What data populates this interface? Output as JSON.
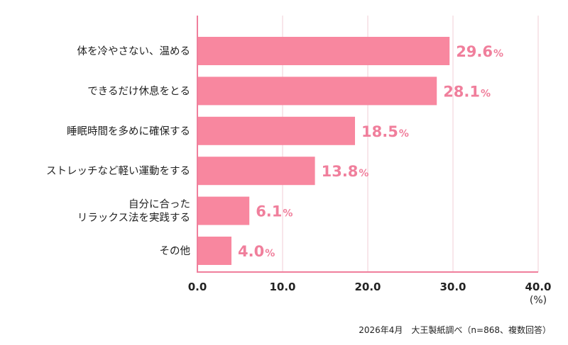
{
  "chart_data": {
    "type": "bar",
    "orientation": "horizontal",
    "categories": [
      [
        "体を冷やさない、温める"
      ],
      [
        "できるだけ休息をとる"
      ],
      [
        "睡眠時間を多めに確保する"
      ],
      [
        "ストレッチなど軽い運動をする"
      ],
      [
        "自分に合った",
        "リラックス法を実践する"
      ],
      [
        "その他"
      ]
    ],
    "values": [
      29.6,
      28.1,
      18.5,
      13.8,
      6.1,
      4.0
    ],
    "value_labels": [
      "29.6",
      "28.1",
      "18.5",
      "13.8",
      "6.1",
      "4.0"
    ],
    "value_unit": "%",
    "xlim": [
      0,
      40
    ],
    "xticks": [
      0,
      10,
      20,
      30,
      40
    ],
    "xtick_labels": [
      "0.0",
      "10.0",
      "20.0",
      "30.0",
      "40.0"
    ],
    "xunit": "(%)",
    "grid": true,
    "source": "2026年4月　大王製紙調べ（n=868、複数回答）",
    "colors": {
      "bar": "#f8879f",
      "value_text": "#f07f9c",
      "grid": "#f2cdd6",
      "axis": "#f07f9c",
      "text": "#222222"
    }
  }
}
